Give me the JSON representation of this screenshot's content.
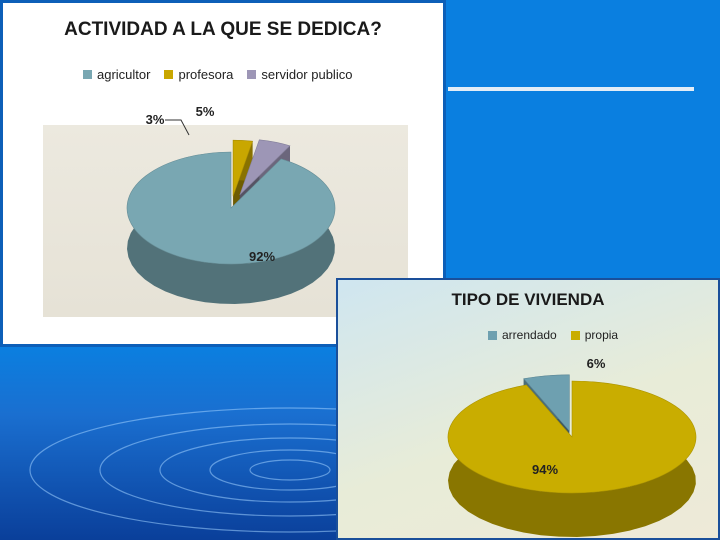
{
  "slide": {
    "colors": {
      "background": "#0a7fe0",
      "divider": "#e3edf7"
    }
  },
  "chart_data": [
    {
      "type": "pie",
      "title": "ACTIVIDAD A LA QUE SE DEDICA?",
      "legend_position": "top",
      "categories": [
        "agricultor",
        "profesora",
        "servidor publico"
      ],
      "values": [
        92,
        3,
        5
      ],
      "data_labels": [
        "92%",
        "3%",
        "5%"
      ],
      "colors": [
        "#79a7b2",
        "#c9a700",
        "#9d96b6"
      ],
      "style": "3d-exploded"
    },
    {
      "type": "pie",
      "title": "TIPO DE VIVIENDA",
      "legend_position": "top",
      "categories": [
        "arrendado",
        "propia"
      ],
      "values": [
        6,
        94
      ],
      "data_labels": [
        "6%",
        "94%"
      ],
      "colors": [
        "#6ea0b0",
        "#c9ad00"
      ],
      "style": "3d-exploded"
    }
  ]
}
